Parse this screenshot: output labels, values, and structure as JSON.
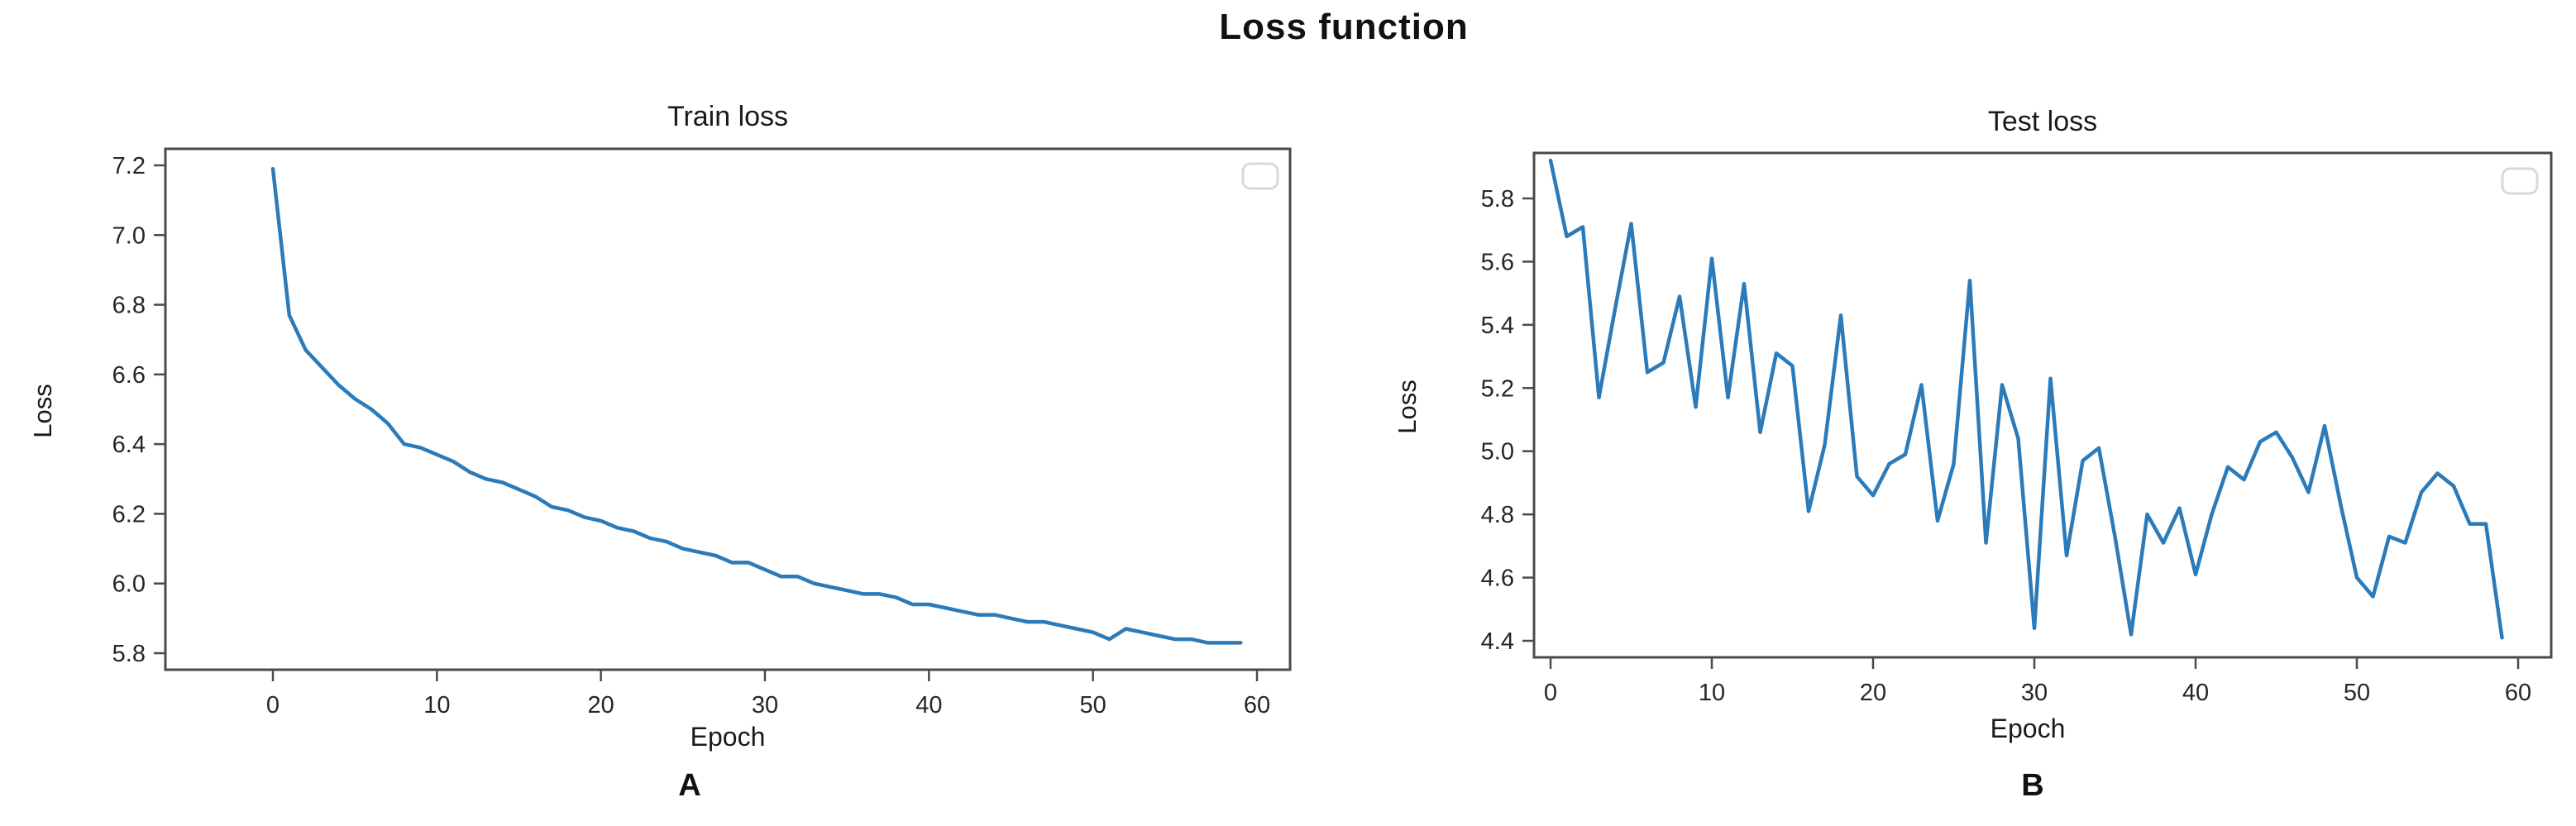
{
  "figure_title": "Loss function",
  "colors": {
    "line": "#2b7bba",
    "axis": "#4a4a4a",
    "tick_label": "#262626",
    "legend_border": "#d9d9d9",
    "background": "#ffffff"
  },
  "chart_data": [
    {
      "type": "line",
      "panel_letter": "A",
      "title": "Train loss",
      "xlabel": "Epoch",
      "ylabel": "Loss",
      "legend": {
        "visible": true,
        "entries": []
      },
      "grid": false,
      "xticks": [
        0,
        10,
        20,
        30,
        40,
        50,
        60
      ],
      "yticks": [
        7.2,
        7.0,
        6.8,
        6.6,
        6.4,
        6.2,
        6.0,
        5.8
      ],
      "xlim": [
        -3,
        62
      ],
      "ylim": [
        5.74,
        7.25
      ],
      "x": [
        0,
        1,
        2,
        3,
        4,
        5,
        6,
        7,
        8,
        9,
        10,
        11,
        12,
        13,
        14,
        15,
        16,
        17,
        18,
        19,
        20,
        21,
        22,
        23,
        24,
        25,
        26,
        27,
        28,
        29,
        30,
        31,
        32,
        33,
        34,
        35,
        36,
        37,
        38,
        39,
        40,
        41,
        42,
        43,
        44,
        45,
        46,
        47,
        48,
        49,
        50,
        51,
        52,
        53,
        54,
        55,
        56,
        57,
        58,
        59
      ],
      "values": [
        7.19,
        6.77,
        6.67,
        6.62,
        6.57,
        6.53,
        6.5,
        6.46,
        6.4,
        6.39,
        6.37,
        6.35,
        6.32,
        6.3,
        6.29,
        6.27,
        6.25,
        6.22,
        6.21,
        6.19,
        6.18,
        6.16,
        6.15,
        6.13,
        6.12,
        6.1,
        6.09,
        6.08,
        6.06,
        6.06,
        6.04,
        6.02,
        6.02,
        6.0,
        5.99,
        5.98,
        5.97,
        5.97,
        5.96,
        5.94,
        5.94,
        5.93,
        5.92,
        5.91,
        5.91,
        5.9,
        5.89,
        5.89,
        5.88,
        5.87,
        5.86,
        5.84,
        5.87,
        5.86,
        5.85,
        5.84,
        5.84,
        5.83,
        5.83,
        5.83
      ]
    },
    {
      "type": "line",
      "panel_letter": "B",
      "title": "Test loss",
      "xlabel": "Epoch",
      "ylabel": "Loss",
      "legend": {
        "visible": true,
        "entries": []
      },
      "grid": false,
      "xticks": [
        0,
        10,
        20,
        30,
        40,
        50,
        60
      ],
      "yticks": [
        5.8,
        5.6,
        5.4,
        5.2,
        5.0,
        4.8,
        4.6,
        4.4
      ],
      "xlim": [
        -3,
        62
      ],
      "ylim": [
        4.33,
        5.96
      ],
      "x": [
        0,
        1,
        2,
        3,
        4,
        5,
        6,
        7,
        8,
        9,
        10,
        11,
        12,
        13,
        14,
        15,
        16,
        17,
        18,
        19,
        20,
        21,
        22,
        23,
        24,
        25,
        26,
        27,
        28,
        29,
        30,
        31,
        32,
        33,
        34,
        35,
        36,
        37,
        38,
        39,
        40,
        41,
        42,
        43,
        44,
        45,
        46,
        47,
        48,
        49,
        50,
        51,
        52,
        53,
        54,
        55,
        56,
        57,
        58,
        59
      ],
      "values": [
        5.92,
        5.68,
        5.71,
        5.17,
        5.45,
        5.72,
        5.25,
        5.28,
        5.49,
        5.14,
        5.61,
        5.17,
        5.53,
        5.06,
        5.31,
        5.27,
        4.81,
        5.02,
        5.43,
        4.92,
        4.86,
        4.96,
        4.99,
        5.21,
        4.78,
        4.96,
        5.54,
        4.71,
        5.21,
        5.04,
        4.44,
        5.23,
        4.67,
        4.97,
        5.01,
        4.73,
        4.42,
        4.8,
        4.71,
        4.82,
        4.61,
        4.8,
        4.95,
        4.91,
        5.03,
        5.06,
        4.98,
        4.87,
        5.08,
        4.83,
        4.6,
        4.54,
        4.73,
        4.71,
        4.87,
        4.93,
        4.89,
        4.77,
        4.77,
        4.41
      ]
    }
  ]
}
